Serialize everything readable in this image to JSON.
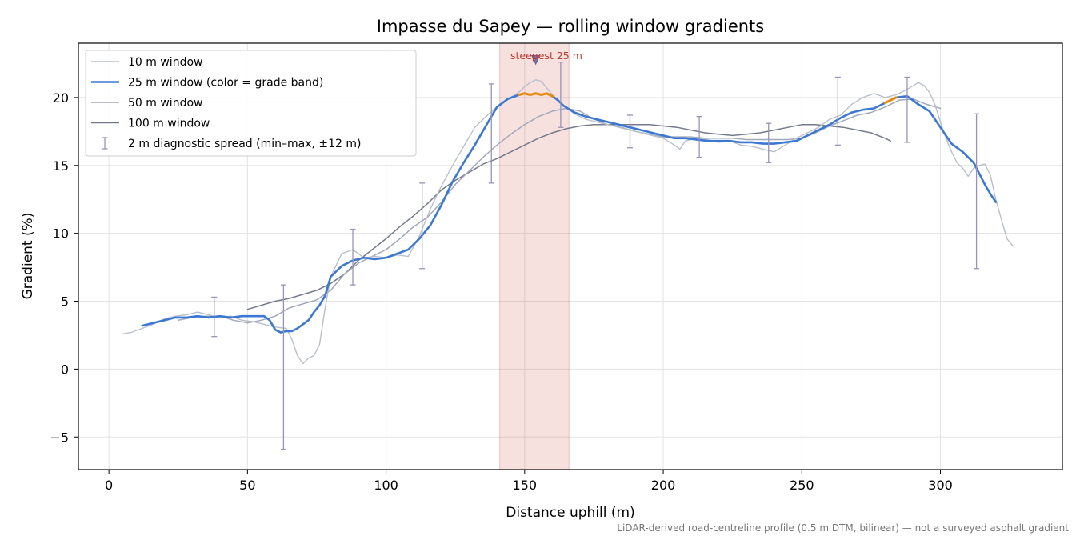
{
  "chart_data": {
    "type": "line",
    "title": "Impasse du Sapey — rolling window gradients",
    "xlabel": "Distance uphill (m)",
    "ylabel": "Gradient (%)",
    "xlim": [
      -11,
      344
    ],
    "ylim": [
      -7.4,
      24.0
    ],
    "xticks": [
      0,
      50,
      100,
      150,
      200,
      250,
      300
    ],
    "yticks": [
      -5,
      0,
      5,
      10,
      15,
      20
    ],
    "grid": true,
    "legend_position": "top-left",
    "footnote": "LiDAR-derived road-centreline profile (0.5 m DTM, bilinear) — not a surveyed asphalt gradient",
    "highlight": {
      "x_start": 141,
      "x_end": 166,
      "label": "steepest 25 m",
      "marker_x": 154,
      "marker_y": 22.8,
      "color": "#c0392b"
    },
    "series": [
      {
        "name": "10 m window",
        "color": "#b8bfcc",
        "width": 1.4,
        "x": [
          5,
          8,
          12,
          16,
          20,
          24,
          28,
          32,
          36,
          40,
          44,
          48,
          52,
          56,
          60,
          64,
          66,
          68,
          70,
          72,
          74,
          76,
          78,
          80,
          84,
          88,
          92,
          96,
          100,
          104,
          108,
          112,
          116,
          120,
          124,
          128,
          132,
          136,
          140,
          144,
          148,
          150,
          152,
          154,
          156,
          158,
          160,
          164,
          168,
          172,
          176,
          180,
          184,
          188,
          192,
          196,
          200,
          204,
          206,
          208,
          212,
          216,
          220,
          224,
          228,
          232,
          236,
          240,
          244,
          248,
          252,
          256,
          260,
          264,
          268,
          272,
          276,
          280,
          284,
          288,
          292,
          294,
          296,
          298,
          300,
          302,
          304,
          306,
          308,
          310,
          312,
          314,
          316,
          318,
          320,
          322,
          324,
          326
        ],
        "y": [
          2.6,
          2.7,
          3.0,
          3.3,
          3.7,
          3.9,
          4.0,
          4.2,
          4.0,
          3.8,
          3.9,
          3.6,
          3.5,
          3.3,
          3.1,
          3.0,
          2.2,
          1.0,
          0.4,
          0.8,
          1.0,
          1.8,
          4.5,
          6.8,
          8.5,
          8.8,
          8.2,
          8.3,
          8.2,
          8.4,
          8.3,
          9.8,
          11.8,
          13.5,
          15.0,
          16.4,
          17.8,
          18.6,
          19.3,
          19.9,
          20.4,
          20.8,
          21.1,
          21.3,
          21.2,
          20.7,
          20.2,
          19.4,
          18.8,
          18.4,
          18.2,
          18.0,
          17.8,
          17.6,
          17.4,
          17.2,
          17.0,
          16.5,
          16.2,
          16.8,
          17.0,
          16.9,
          16.7,
          16.8,
          16.5,
          16.4,
          16.2,
          16.0,
          16.5,
          17.0,
          17.4,
          17.8,
          18.4,
          18.7,
          19.5,
          20.0,
          20.3,
          20.0,
          20.2,
          20.6,
          21.1,
          20.9,
          20.4,
          19.5,
          18.2,
          17.0,
          16.0,
          15.2,
          14.8,
          14.2,
          14.8,
          15.0,
          15.1,
          14.3,
          12.5,
          11.0,
          9.6,
          9.1
        ]
      },
      {
        "name": "25 m window (color = grade band)",
        "color": "#3a78d4",
        "width": 2.6,
        "x": [
          12,
          16,
          20,
          24,
          28,
          32,
          36,
          40,
          44,
          48,
          52,
          56,
          58,
          60,
          62,
          64,
          66,
          68,
          70,
          72,
          74,
          76,
          78,
          80,
          84,
          88,
          92,
          96,
          100,
          104,
          108,
          112,
          116,
          120,
          124,
          128,
          132,
          136,
          140,
          144,
          148,
          150,
          152,
          154,
          156,
          158,
          160,
          162,
          164,
          168,
          172,
          176,
          180,
          184,
          188,
          192,
          196,
          200,
          204,
          208,
          212,
          216,
          220,
          224,
          228,
          232,
          236,
          240,
          244,
          248,
          252,
          256,
          260,
          264,
          268,
          272,
          276,
          280,
          284,
          288,
          292,
          296,
          300,
          304,
          308,
          312,
          316,
          318,
          320
        ],
        "y": [
          3.2,
          3.4,
          3.6,
          3.8,
          3.8,
          3.9,
          3.8,
          3.9,
          3.8,
          3.9,
          3.9,
          3.9,
          3.6,
          2.9,
          2.7,
          2.8,
          2.8,
          3.0,
          3.3,
          3.6,
          4.2,
          4.7,
          5.4,
          6.8,
          7.6,
          8.0,
          8.2,
          8.1,
          8.2,
          8.5,
          8.8,
          9.6,
          10.6,
          12.1,
          13.8,
          15.2,
          16.5,
          17.9,
          19.3,
          19.9,
          20.2,
          20.3,
          20.2,
          20.3,
          20.2,
          20.3,
          20.1,
          19.8,
          19.4,
          18.9,
          18.6,
          18.4,
          18.2,
          18.0,
          17.8,
          17.6,
          17.4,
          17.2,
          17.0,
          17.0,
          16.9,
          16.8,
          16.8,
          16.8,
          16.7,
          16.7,
          16.6,
          16.6,
          16.7,
          16.8,
          17.2,
          17.6,
          18.0,
          18.5,
          18.9,
          19.1,
          19.2,
          19.6,
          20.0,
          20.1,
          19.5,
          19.0,
          17.8,
          16.6,
          16.0,
          15.2,
          13.6,
          12.9,
          12.3
        ]
      },
      {
        "name": "50 m window",
        "color": "#a0a8ba",
        "width": 1.5,
        "x": [
          25,
          30,
          35,
          40,
          45,
          50,
          55,
          60,
          65,
          70,
          75,
          80,
          85,
          90,
          95,
          100,
          105,
          110,
          115,
          120,
          125,
          130,
          135,
          140,
          145,
          150,
          155,
          160,
          165,
          170,
          175,
          180,
          185,
          190,
          195,
          200,
          205,
          210,
          215,
          220,
          225,
          230,
          235,
          240,
          245,
          250,
          255,
          260,
          265,
          270,
          275,
          280,
          285,
          290,
          295,
          300
        ],
        "y": [
          3.6,
          3.8,
          3.9,
          3.9,
          3.6,
          3.4,
          3.6,
          3.9,
          4.5,
          4.8,
          5.1,
          5.8,
          7.0,
          7.8,
          8.3,
          8.8,
          9.6,
          10.5,
          11.2,
          12.3,
          13.6,
          14.6,
          15.6,
          16.5,
          17.3,
          18.0,
          18.6,
          19.0,
          19.2,
          19.0,
          18.4,
          18.0,
          17.8,
          17.5,
          17.3,
          17.1,
          17.1,
          17.1,
          17.0,
          17.0,
          17.0,
          16.9,
          16.9,
          16.9,
          16.9,
          17.0,
          17.4,
          17.9,
          18.3,
          18.7,
          18.9,
          19.3,
          19.8,
          19.9,
          19.5,
          19.2
        ]
      },
      {
        "name": "100 m window",
        "color": "#727a8c",
        "width": 1.5,
        "x": [
          50,
          55,
          60,
          65,
          70,
          75,
          80,
          85,
          90,
          95,
          100,
          105,
          110,
          115,
          120,
          125,
          130,
          135,
          140,
          145,
          150,
          155,
          160,
          165,
          170,
          175,
          180,
          185,
          190,
          195,
          200,
          205,
          210,
          215,
          220,
          225,
          230,
          235,
          240,
          245,
          250,
          255,
          260,
          265,
          270,
          275,
          280,
          282
        ],
        "y": [
          4.4,
          4.7,
          5.0,
          5.2,
          5.5,
          5.8,
          6.3,
          7.0,
          8.0,
          8.8,
          9.6,
          10.5,
          11.3,
          12.2,
          13.2,
          13.9,
          14.5,
          15.1,
          15.5,
          16.0,
          16.5,
          17.0,
          17.4,
          17.7,
          17.9,
          18.0,
          18.0,
          18.0,
          18.0,
          18.0,
          17.9,
          17.8,
          17.6,
          17.4,
          17.3,
          17.2,
          17.3,
          17.4,
          17.6,
          17.8,
          18.0,
          18.0,
          17.9,
          17.8,
          17.6,
          17.4,
          17.0,
          16.8
        ]
      }
    ],
    "grade_band_highlights": [
      {
        "color": "#e88a0c",
        "x_start": 148,
        "x_end": 160
      },
      {
        "color": "#e88a0c",
        "x_start": 280,
        "x_end": 286
      }
    ],
    "error_bars": {
      "name": "2 m diagnostic spread (min–max, ±12 m)",
      "color": "#9a93b6",
      "points": [
        {
          "x": 38,
          "low": 2.4,
          "high": 5.3
        },
        {
          "x": 63,
          "low": -5.9,
          "high": 6.2
        },
        {
          "x": 88,
          "low": 6.2,
          "high": 10.3
        },
        {
          "x": 113,
          "low": 7.4,
          "high": 13.7
        },
        {
          "x": 138,
          "low": 13.7,
          "high": 21.0
        },
        {
          "x": 163,
          "low": 17.8,
          "high": 22.6
        },
        {
          "x": 188,
          "low": 16.3,
          "high": 18.7
        },
        {
          "x": 213,
          "low": 15.6,
          "high": 18.6
        },
        {
          "x": 238,
          "low": 15.2,
          "high": 18.1
        },
        {
          "x": 263,
          "low": 16.5,
          "high": 21.5
        },
        {
          "x": 288,
          "low": 16.7,
          "high": 21.5
        },
        {
          "x": 313,
          "low": 7.4,
          "high": 18.8
        }
      ]
    }
  }
}
